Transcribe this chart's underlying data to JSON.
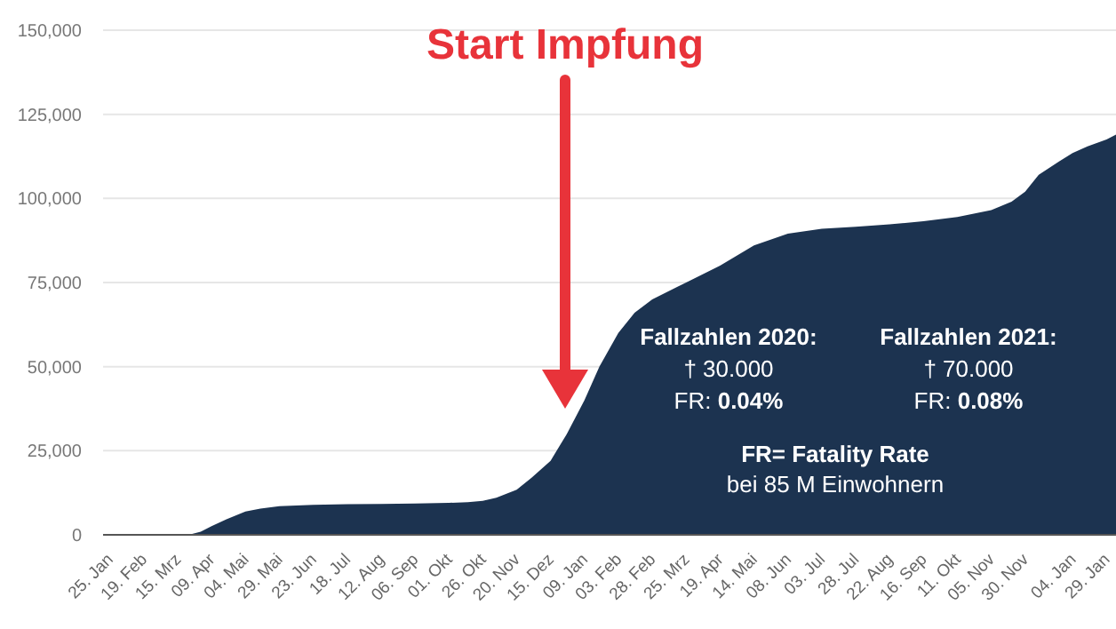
{
  "chart_data": {
    "type": "area",
    "color": "#1c3350",
    "x": [
      "2020-01-25",
      "2020-03-10",
      "2020-03-15",
      "2020-03-25",
      "2020-04-01",
      "2020-04-09",
      "2020-04-20",
      "2020-05-04",
      "2020-05-15",
      "2020-05-29",
      "2020-06-23",
      "2020-07-18",
      "2020-08-12",
      "2020-09-06",
      "2020-10-01",
      "2020-10-15",
      "2020-10-26",
      "2020-11-05",
      "2020-11-20",
      "2020-12-01",
      "2020-12-15",
      "2020-12-27",
      "2021-01-09",
      "2021-01-20",
      "2021-02-03",
      "2021-02-15",
      "2021-02-28",
      "2021-03-25",
      "2021-04-19",
      "2021-05-14",
      "2021-06-08",
      "2021-07-03",
      "2021-07-28",
      "2021-08-22",
      "2021-09-16",
      "2021-10-11",
      "2021-11-05",
      "2021-11-20",
      "2021-11-30",
      "2021-12-10",
      "2021-12-25",
      "2022-01-04",
      "2022-01-15",
      "2022-01-29",
      "2022-02-05"
    ],
    "values": [
      0,
      0,
      0,
      200,
      900,
      2600,
      4600,
      6900,
      7800,
      8500,
      8900,
      9100,
      9200,
      9300,
      9500,
      9700,
      10100,
      11000,
      13400,
      17000,
      22000,
      30000,
      40000,
      50000,
      60000,
      66000,
      70000,
      75000,
      80000,
      86000,
      89500,
      91000,
      91600,
      92300,
      93200,
      94500,
      96500,
      99000,
      102000,
      107000,
      111000,
      113500,
      115500,
      117500,
      119000
    ],
    "xlim": [
      "2020-01-20",
      "2022-02-05"
    ],
    "xticks": [
      {
        "value": "2020-01-25",
        "label": "25. Jan"
      },
      {
        "value": "2020-02-19",
        "label": "19. Feb"
      },
      {
        "value": "2020-03-15",
        "label": "15. Mrz"
      },
      {
        "value": "2020-04-09",
        "label": "09. Apr"
      },
      {
        "value": "2020-05-04",
        "label": "04. Mai"
      },
      {
        "value": "2020-05-29",
        "label": "29. Mai"
      },
      {
        "value": "2020-06-23",
        "label": "23. Jun"
      },
      {
        "value": "2020-07-18",
        "label": "18. Jul"
      },
      {
        "value": "2020-08-12",
        "label": "12. Aug"
      },
      {
        "value": "2020-09-06",
        "label": "06. Sep"
      },
      {
        "value": "2020-10-01",
        "label": "01. Okt"
      },
      {
        "value": "2020-10-26",
        "label": "26. Okt"
      },
      {
        "value": "2020-11-20",
        "label": "20. Nov"
      },
      {
        "value": "2020-12-15",
        "label": "15. Dez"
      },
      {
        "value": "2021-01-09",
        "label": "09. Jan"
      },
      {
        "value": "2021-02-03",
        "label": "03. Feb"
      },
      {
        "value": "2021-02-28",
        "label": "28. Feb"
      },
      {
        "value": "2021-03-25",
        "label": "25. Mrz"
      },
      {
        "value": "2021-04-19",
        "label": "19. Apr"
      },
      {
        "value": "2021-05-14",
        "label": "14. Mai"
      },
      {
        "value": "2021-06-08",
        "label": "08. Jun"
      },
      {
        "value": "2021-07-03",
        "label": "03. Jul"
      },
      {
        "value": "2021-07-28",
        "label": "28. Jul"
      },
      {
        "value": "2021-08-22",
        "label": "22. Aug"
      },
      {
        "value": "2021-09-16",
        "label": "16. Sep"
      },
      {
        "value": "2021-10-11",
        "label": "11. Okt"
      },
      {
        "value": "2021-11-05",
        "label": "05. Nov"
      },
      {
        "value": "2021-11-30",
        "label": "30. Nov"
      },
      {
        "value": "2022-01-04",
        "label": "04. Jan"
      },
      {
        "value": "2022-01-29",
        "label": "29. Jan"
      }
    ],
    "ylim": [
      0,
      150000
    ],
    "yticks": [
      0,
      {
        "value": 25000,
        "label": "25,000"
      },
      {
        "value": 50000,
        "label": "50,000"
      },
      {
        "value": 75000,
        "label": "75,000"
      },
      {
        "value": 100000,
        "label": "100,000"
      },
      {
        "value": 125000,
        "label": "125,000"
      },
      {
        "value": 150000,
        "label": "150,000"
      }
    ],
    "grid": "y",
    "annotations": [
      "Start Impfung",
      "Fallzahlen 2020:",
      "† 30.000",
      "FR: 0.04%",
      "Fallzahlen 2021:",
      "† 70.000",
      "FR: 0.08%",
      "FR= Fatality Rate",
      "bei 85 M Einwohnern"
    ]
  }
}
